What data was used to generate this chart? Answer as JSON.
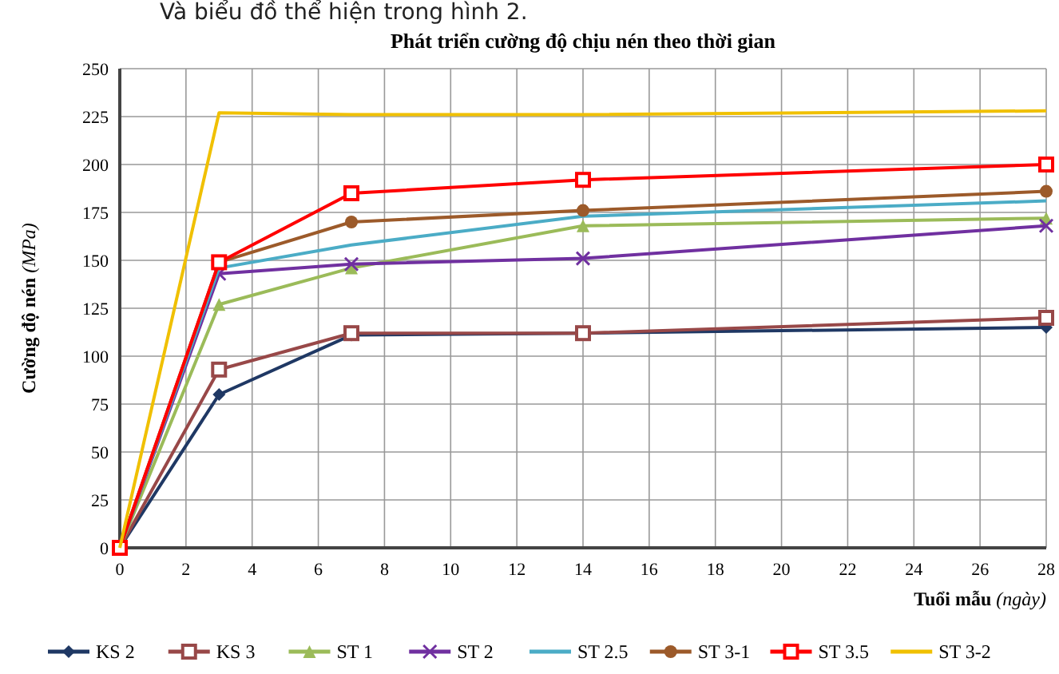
{
  "chart_data": {
    "type": "line",
    "title": "Phát triển cường độ chịu nén theo thời gian",
    "xlabel": "Tuổi mẫu (ngày)",
    "ylabel": "Cường độ nén (MPa)",
    "annotations": [
      "Và biểu đồ thể hiện trong hình 2."
    ],
    "x": [
      0,
      3,
      7,
      14,
      28
    ],
    "xlim": [
      0,
      28
    ],
    "xticks": [
      0,
      2,
      4,
      6,
      8,
      10,
      12,
      14,
      16,
      18,
      20,
      22,
      24,
      26,
      28
    ],
    "ylim": [
      0,
      250
    ],
    "yticks": [
      0,
      25,
      50,
      75,
      100,
      125,
      150,
      175,
      200,
      225,
      250
    ],
    "grid": true,
    "legend": "bottom",
    "line_style": "solid",
    "series": [
      {
        "name": "KS 2",
        "color": "#1f3864",
        "marker": "diamond",
        "values": [
          0,
          80,
          111,
          112,
          115
        ]
      },
      {
        "name": "KS 3",
        "color": "#984848",
        "marker": "square",
        "values": [
          0,
          93,
          112,
          112,
          120
        ]
      },
      {
        "name": "ST 1",
        "color": "#9bbb59",
        "marker": "triangle",
        "values": [
          0,
          127,
          146,
          168,
          172
        ]
      },
      {
        "name": "ST 2",
        "color": "#7030a0",
        "marker": "cross",
        "values": [
          0,
          143,
          148,
          151,
          168
        ]
      },
      {
        "name": "ST 2.5",
        "color": "#4bacc6",
        "marker": "none",
        "values": [
          0,
          146,
          158,
          173,
          181
        ]
      },
      {
        "name": "ST 3-1",
        "color": "#9c5a2a",
        "marker": "circle",
        "values": [
          0,
          149,
          170,
          176,
          186
        ]
      },
      {
        "name": "ST 3.5",
        "color": "#ff0000",
        "marker": "square",
        "values": [
          0,
          149,
          185,
          192,
          200
        ]
      },
      {
        "name": "ST 3-2",
        "color": "#f0c000",
        "marker": "none",
        "values": [
          0,
          227,
          226,
          226,
          228
        ]
      }
    ]
  }
}
